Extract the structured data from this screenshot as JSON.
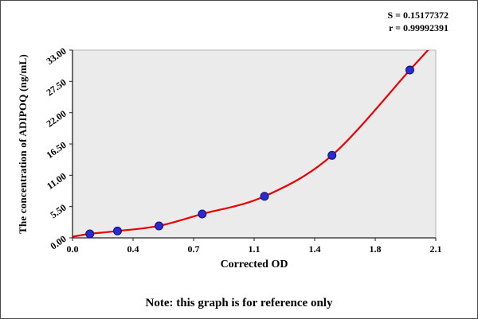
{
  "note": "Note: this graph is for reference only",
  "chart_data": {
    "type": "scatter",
    "xlabel": "Corrected OD",
    "ylabel": "The concentration of ADIPOQ (ng/mL)",
    "xlim": [
      0,
      2.1
    ],
    "ylim": [
      0,
      33
    ],
    "xticks": [
      "0.0",
      "0.4",
      "0.7",
      "1.1",
      "1.4",
      "1.8",
      "2.1"
    ],
    "yticks": [
      "0.00",
      "5.50",
      "11.00",
      "16.50",
      "22.00",
      "27.50",
      "33.00"
    ],
    "grid": false,
    "legend": false,
    "plot_bg": "#ebebeb",
    "axis_color": "#222222",
    "stats": {
      "s_label": "S = 0.15177372",
      "r_label": "r = 0.99992391"
    },
    "series": [
      {
        "name": "standard-points",
        "marker": "circle",
        "marker_color": "#2a2ad0",
        "marker_edge": "#10106e",
        "points": [
          [
            0.1,
            0.7
          ],
          [
            0.26,
            1.2
          ],
          [
            0.5,
            2.1
          ],
          [
            0.75,
            4.2
          ],
          [
            1.11,
            7.3
          ],
          [
            1.5,
            14.5
          ],
          [
            1.95,
            29.5
          ]
        ]
      }
    ],
    "fit_curve": {
      "name": "regression-curve",
      "color": "#e60000",
      "points": [
        [
          0.0,
          0.2
        ],
        [
          0.1,
          0.7
        ],
        [
          0.26,
          1.2
        ],
        [
          0.5,
          2.1
        ],
        [
          0.75,
          4.2
        ],
        [
          1.11,
          7.3
        ],
        [
          1.5,
          14.5
        ],
        [
          1.95,
          29.5
        ],
        [
          2.07,
          33.5
        ]
      ]
    }
  }
}
